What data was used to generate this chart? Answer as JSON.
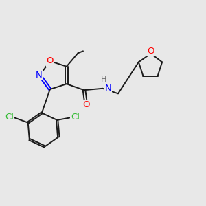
{
  "background_color": "#e8e8e8",
  "atom_colors": {
    "O": "#ff0000",
    "N": "#0000ff",
    "C": "#1a1a1a",
    "Cl": "#33bb33",
    "H": "#666666"
  },
  "bond_color": "#1a1a1a",
  "figsize": [
    3.0,
    3.0
  ],
  "dpi": 100
}
